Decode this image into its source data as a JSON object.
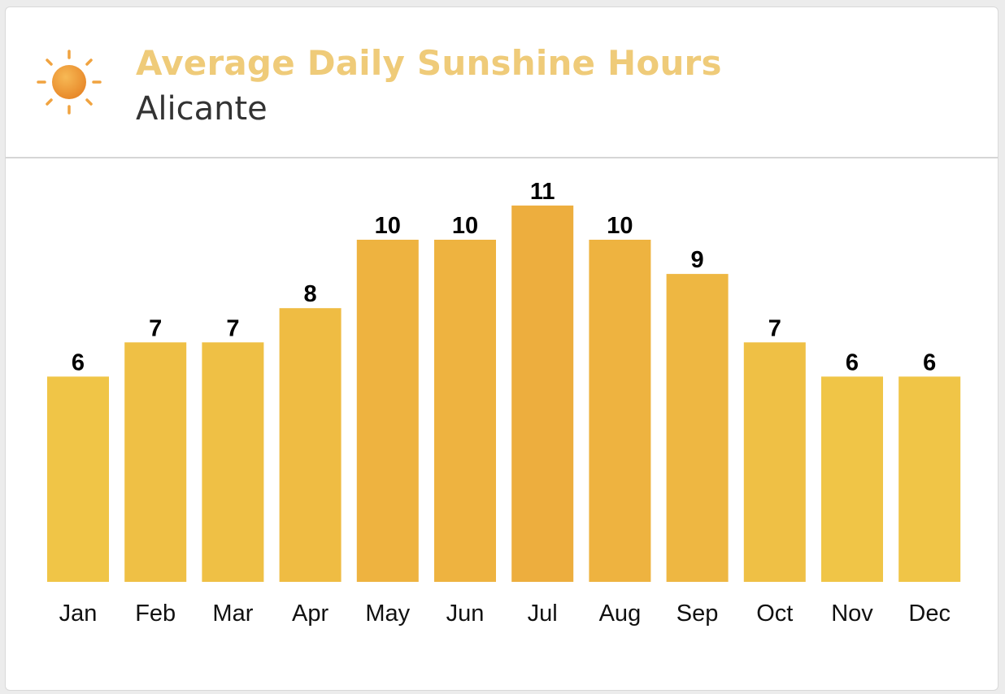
{
  "header": {
    "title": "Average Daily Sunshine Hours",
    "subtitle": "Alicante",
    "icon": "sun-icon"
  },
  "colors": {
    "title": "#efcb79",
    "low": "#f0c547",
    "high": "#edae3e"
  },
  "chart_data": {
    "type": "bar",
    "title": "Average Daily Sunshine Hours",
    "subtitle": "Alicante",
    "categories": [
      "Jan",
      "Feb",
      "Mar",
      "Apr",
      "May",
      "Jun",
      "Jul",
      "Aug",
      "Sep",
      "Oct",
      "Nov",
      "Dec"
    ],
    "values": [
      6,
      7,
      7,
      8,
      10,
      10,
      11,
      10,
      9,
      7,
      6,
      6
    ],
    "xlabel": "",
    "ylabel": "",
    "ylim": [
      0,
      12
    ],
    "grid": false,
    "legend": "none",
    "data_labels": true
  }
}
